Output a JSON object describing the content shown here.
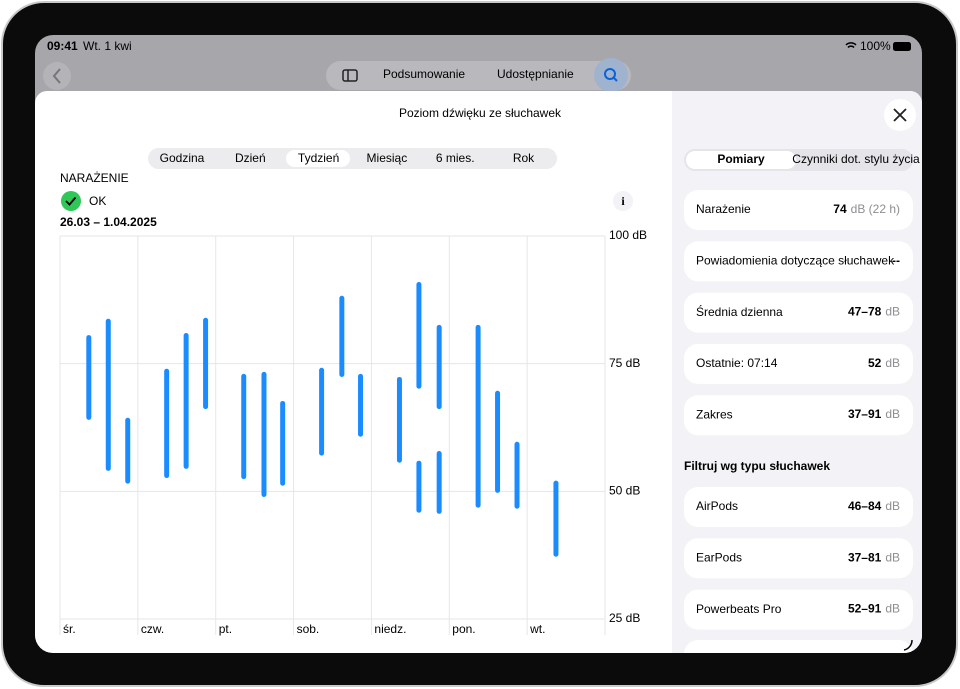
{
  "status_bar": {
    "time": "09:41",
    "date": "Wt. 1 kwi",
    "battery": "100%"
  },
  "toolbar": {
    "items": [
      "Podsumowanie",
      "Udostępnianie"
    ]
  },
  "sheet": {
    "title": "Poziom dźwięku ze słuchawek",
    "periods": [
      "Godzina",
      "Dzień",
      "Tydzień",
      "Miesiąc",
      "6 mies.",
      "Rok"
    ]
  },
  "exposure": {
    "label": "NARAŻENIE",
    "status": "OK",
    "date_range": "26.03 – 1.04.2025"
  },
  "chart_data": {
    "type": "range-bar",
    "color": "#1a8cff",
    "x": [
      0.37,
      0.62,
      0.87,
      1.37,
      1.62,
      1.87,
      2.36,
      2.62,
      2.86,
      3.36,
      3.62,
      3.86,
      4.36,
      4.61,
      4.61,
      4.87,
      4.87,
      5.37,
      5.62,
      5.87,
      6.37
    ],
    "low": [
      64,
      54,
      51.5,
      52.6,
      54.4,
      66.1,
      52.4,
      48.9,
      51.1,
      57,
      72.4,
      60.7,
      55.6,
      70.1,
      45.8,
      66.1,
      45.6,
      46.8,
      49.7,
      46.6,
      37.2
    ],
    "high": [
      80.6,
      83.8,
      64.4,
      74,
      81,
      84,
      73,
      73.4,
      67.7,
      74.2,
      88.3,
      73,
      72.4,
      91,
      56,
      82.6,
      57.9,
      82.6,
      69.7,
      59.7,
      52.1
    ],
    "xlim": [
      0,
      7
    ],
    "xticks": [
      {
        "value": 0,
        "label": "śr."
      },
      {
        "value": 1,
        "label": "czw."
      },
      {
        "value": 2,
        "label": "pt."
      },
      {
        "value": 3,
        "label": "sob."
      },
      {
        "value": 4,
        "label": "niedz."
      },
      {
        "value": 5,
        "label": "pon."
      },
      {
        "value": 6,
        "label": "wt."
      }
    ],
    "ylim": [
      25,
      100
    ],
    "yticks": [
      {
        "value": 25,
        "label": "25 dB"
      },
      {
        "value": 50,
        "label": "50 dB"
      },
      {
        "value": 75,
        "label": "75 dB"
      },
      {
        "value": 100,
        "label": "100 dB"
      }
    ],
    "grid": true
  },
  "panel": {
    "tabs": [
      "Pomiary",
      "Czynniki dot. stylu życia"
    ],
    "rows": [
      {
        "label": "Narażenie",
        "value": "74",
        "unit": "dB (22 h)"
      },
      {
        "label": "Powiadomienia dotyczące słuchawek",
        "value": "--"
      },
      {
        "label": "Średnia dzienna",
        "value": "47–78",
        "unit": "dB"
      },
      {
        "label": "Ostatnie: 07:14",
        "value": "52",
        "unit": "dB"
      },
      {
        "label": "Zakres",
        "value": "37–91",
        "unit": "dB"
      }
    ],
    "filter_title": "Filtruj wg typu słuchawek",
    "devices": [
      {
        "label": "AirPods",
        "value": "46–84",
        "unit": "dB"
      },
      {
        "label": "EarPods",
        "value": "37–81",
        "unit": "dB"
      },
      {
        "label": "Powerbeats Pro",
        "value": "52–91",
        "unit": "dB"
      }
    ]
  }
}
